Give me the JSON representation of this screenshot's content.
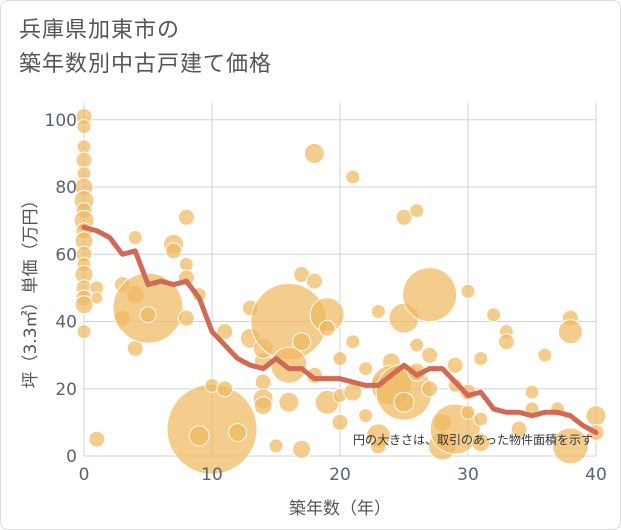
{
  "chart_data": {
    "type": "scatter",
    "title_line1": "兵庫県加東市の",
    "title_line2": "築年数別中古戸建て価格",
    "xlabel": "築年数（年）",
    "ylabel": "坪（3.3㎡）単価（万円）",
    "xlim": [
      0,
      40
    ],
    "ylim": [
      0,
      105
    ],
    "xticks": [
      0,
      10,
      20,
      30,
      40
    ],
    "yticks": [
      0,
      20,
      40,
      60,
      80,
      100
    ],
    "grid": true,
    "note": "円の大きさは、取引のあった物件面積を示す",
    "colors": {
      "bubble": "#f0b860",
      "bubble_edge": "#ffffff",
      "trend": "#d06a55",
      "grid": "#c9d3de"
    },
    "bubbles": [
      {
        "x": 0,
        "y": 101,
        "s": 8
      },
      {
        "x": 0,
        "y": 98,
        "s": 7
      },
      {
        "x": 0,
        "y": 92,
        "s": 7
      },
      {
        "x": 0,
        "y": 88,
        "s": 8
      },
      {
        "x": 0,
        "y": 84,
        "s": 7
      },
      {
        "x": 0,
        "y": 80,
        "s": 9
      },
      {
        "x": 0,
        "y": 76,
        "s": 10
      },
      {
        "x": 0,
        "y": 73,
        "s": 8
      },
      {
        "x": 0,
        "y": 70,
        "s": 10
      },
      {
        "x": 0,
        "y": 67,
        "s": 8
      },
      {
        "x": 0,
        "y": 64,
        "s": 9
      },
      {
        "x": 0,
        "y": 60,
        "s": 8
      },
      {
        "x": 0,
        "y": 57,
        "s": 7
      },
      {
        "x": 0,
        "y": 54,
        "s": 9
      },
      {
        "x": 0,
        "y": 50,
        "s": 8
      },
      {
        "x": 0,
        "y": 47,
        "s": 8
      },
      {
        "x": 0,
        "y": 45,
        "s": 9
      },
      {
        "x": 0,
        "y": 37,
        "s": 7
      },
      {
        "x": 1,
        "y": 50,
        "s": 7
      },
      {
        "x": 1,
        "y": 47,
        "s": 6
      },
      {
        "x": 1,
        "y": 5,
        "s": 8
      },
      {
        "x": 3,
        "y": 51,
        "s": 8
      },
      {
        "x": 4,
        "y": 65,
        "s": 7
      },
      {
        "x": 4,
        "y": 48,
        "s": 9
      },
      {
        "x": 3,
        "y": 41,
        "s": 8
      },
      {
        "x": 4,
        "y": 32,
        "s": 8
      },
      {
        "x": 5,
        "y": 44,
        "s": 35
      },
      {
        "x": 5,
        "y": 42,
        "s": 8
      },
      {
        "x": 7,
        "y": 63,
        "s": 10
      },
      {
        "x": 7,
        "y": 61,
        "s": 8
      },
      {
        "x": 8,
        "y": 71,
        "s": 8
      },
      {
        "x": 8,
        "y": 57,
        "s": 7
      },
      {
        "x": 8,
        "y": 53,
        "s": 8
      },
      {
        "x": 8,
        "y": 41,
        "s": 8
      },
      {
        "x": 9,
        "y": 48,
        "s": 7
      },
      {
        "x": 10,
        "y": 8,
        "s": 45
      },
      {
        "x": 9,
        "y": 6,
        "s": 10
      },
      {
        "x": 10,
        "y": 21,
        "s": 7
      },
      {
        "x": 11,
        "y": 37,
        "s": 8
      },
      {
        "x": 11,
        "y": 20,
        "s": 8
      },
      {
        "x": 12,
        "y": 7,
        "s": 9
      },
      {
        "x": 13,
        "y": 44,
        "s": 8
      },
      {
        "x": 13,
        "y": 35,
        "s": 10
      },
      {
        "x": 14,
        "y": 28,
        "s": 9
      },
      {
        "x": 14,
        "y": 22,
        "s": 8
      },
      {
        "x": 14,
        "y": 17,
        "s": 10
      },
      {
        "x": 14,
        "y": 15,
        "s": 9
      },
      {
        "x": 14,
        "y": 32,
        "s": 10
      },
      {
        "x": 15,
        "y": 3,
        "s": 7
      },
      {
        "x": 16,
        "y": 40,
        "s": 38
      },
      {
        "x": 16,
        "y": 27,
        "s": 18
      },
      {
        "x": 16,
        "y": 16,
        "s": 10
      },
      {
        "x": 17,
        "y": 54,
        "s": 8
      },
      {
        "x": 17,
        "y": 34,
        "s": 9
      },
      {
        "x": 17,
        "y": 2,
        "s": 9
      },
      {
        "x": 18,
        "y": 90,
        "s": 10
      },
      {
        "x": 18,
        "y": 52,
        "s": 8
      },
      {
        "x": 18,
        "y": 24,
        "s": 8
      },
      {
        "x": 19,
        "y": 42,
        "s": 17
      },
      {
        "x": 19,
        "y": 38,
        "s": 8
      },
      {
        "x": 19,
        "y": 16,
        "s": 12
      },
      {
        "x": 20,
        "y": 29,
        "s": 7
      },
      {
        "x": 20,
        "y": 18,
        "s": 7
      },
      {
        "x": 20,
        "y": 10,
        "s": 8
      },
      {
        "x": 21,
        "y": 83,
        "s": 7
      },
      {
        "x": 21,
        "y": 34,
        "s": 7
      },
      {
        "x": 21,
        "y": 19,
        "s": 9
      },
      {
        "x": 22,
        "y": 26,
        "s": 7
      },
      {
        "x": 22,
        "y": 12,
        "s": 7
      },
      {
        "x": 23,
        "y": 43,
        "s": 7
      },
      {
        "x": 23,
        "y": 22,
        "s": 7
      },
      {
        "x": 23,
        "y": 6,
        "s": 12
      },
      {
        "x": 23,
        "y": 3,
        "s": 8
      },
      {
        "x": 24,
        "y": 28,
        "s": 9
      },
      {
        "x": 24,
        "y": 21,
        "s": 20
      },
      {
        "x": 25,
        "y": 71,
        "s": 8
      },
      {
        "x": 25,
        "y": 41,
        "s": 15
      },
      {
        "x": 25,
        "y": 19,
        "s": 28
      },
      {
        "x": 25,
        "y": 16,
        "s": 10
      },
      {
        "x": 26,
        "y": 73,
        "s": 7
      },
      {
        "x": 26,
        "y": 33,
        "s": 7
      },
      {
        "x": 26,
        "y": 25,
        "s": 9
      },
      {
        "x": 27,
        "y": 48,
        "s": 27
      },
      {
        "x": 27,
        "y": 30,
        "s": 8
      },
      {
        "x": 27,
        "y": 20,
        "s": 8
      },
      {
        "x": 28,
        "y": 10,
        "s": 9
      },
      {
        "x": 28,
        "y": 3,
        "s": 14
      },
      {
        "x": 29,
        "y": 27,
        "s": 8
      },
      {
        "x": 29,
        "y": 21,
        "s": 7
      },
      {
        "x": 29,
        "y": 8,
        "s": 25
      },
      {
        "x": 30,
        "y": 49,
        "s": 7
      },
      {
        "x": 30,
        "y": 19,
        "s": 8
      },
      {
        "x": 30,
        "y": 13,
        "s": 7
      },
      {
        "x": 31,
        "y": 29,
        "s": 7
      },
      {
        "x": 31,
        "y": 4,
        "s": 9
      },
      {
        "x": 31,
        "y": 11,
        "s": 7
      },
      {
        "x": 32,
        "y": 42,
        "s": 7
      },
      {
        "x": 33,
        "y": 37,
        "s": 7
      },
      {
        "x": 33,
        "y": 34,
        "s": 8
      },
      {
        "x": 34,
        "y": 8,
        "s": 8
      },
      {
        "x": 35,
        "y": 19,
        "s": 7
      },
      {
        "x": 35,
        "y": 14,
        "s": 7
      },
      {
        "x": 36,
        "y": 30,
        "s": 7
      },
      {
        "x": 37,
        "y": 14,
        "s": 7
      },
      {
        "x": 38,
        "y": 41,
        "s": 8
      },
      {
        "x": 38,
        "y": 37,
        "s": 12
      },
      {
        "x": 38,
        "y": 3,
        "s": 18
      },
      {
        "x": 40,
        "y": 12,
        "s": 10
      },
      {
        "x": 40,
        "y": 7,
        "s": 8
      }
    ],
    "trend": {
      "x": [
        0,
        1,
        2,
        3,
        4,
        5,
        6,
        7,
        8,
        9,
        10,
        11,
        12,
        13,
        14,
        15,
        16,
        17,
        18,
        19,
        20,
        21,
        22,
        23,
        24,
        25,
        26,
        27,
        28,
        29,
        30,
        31,
        32,
        33,
        34,
        35,
        36,
        37,
        38,
        39,
        40
      ],
      "y": [
        68,
        67,
        65,
        60,
        61,
        51,
        52,
        51,
        52,
        47,
        37,
        33,
        29,
        27,
        26,
        29,
        26,
        26,
        23,
        23,
        23,
        22,
        21,
        21,
        24,
        27,
        24,
        26,
        26,
        22,
        18,
        19,
        14,
        13,
        13,
        12,
        13,
        13,
        12,
        9,
        7
      ]
    }
  }
}
